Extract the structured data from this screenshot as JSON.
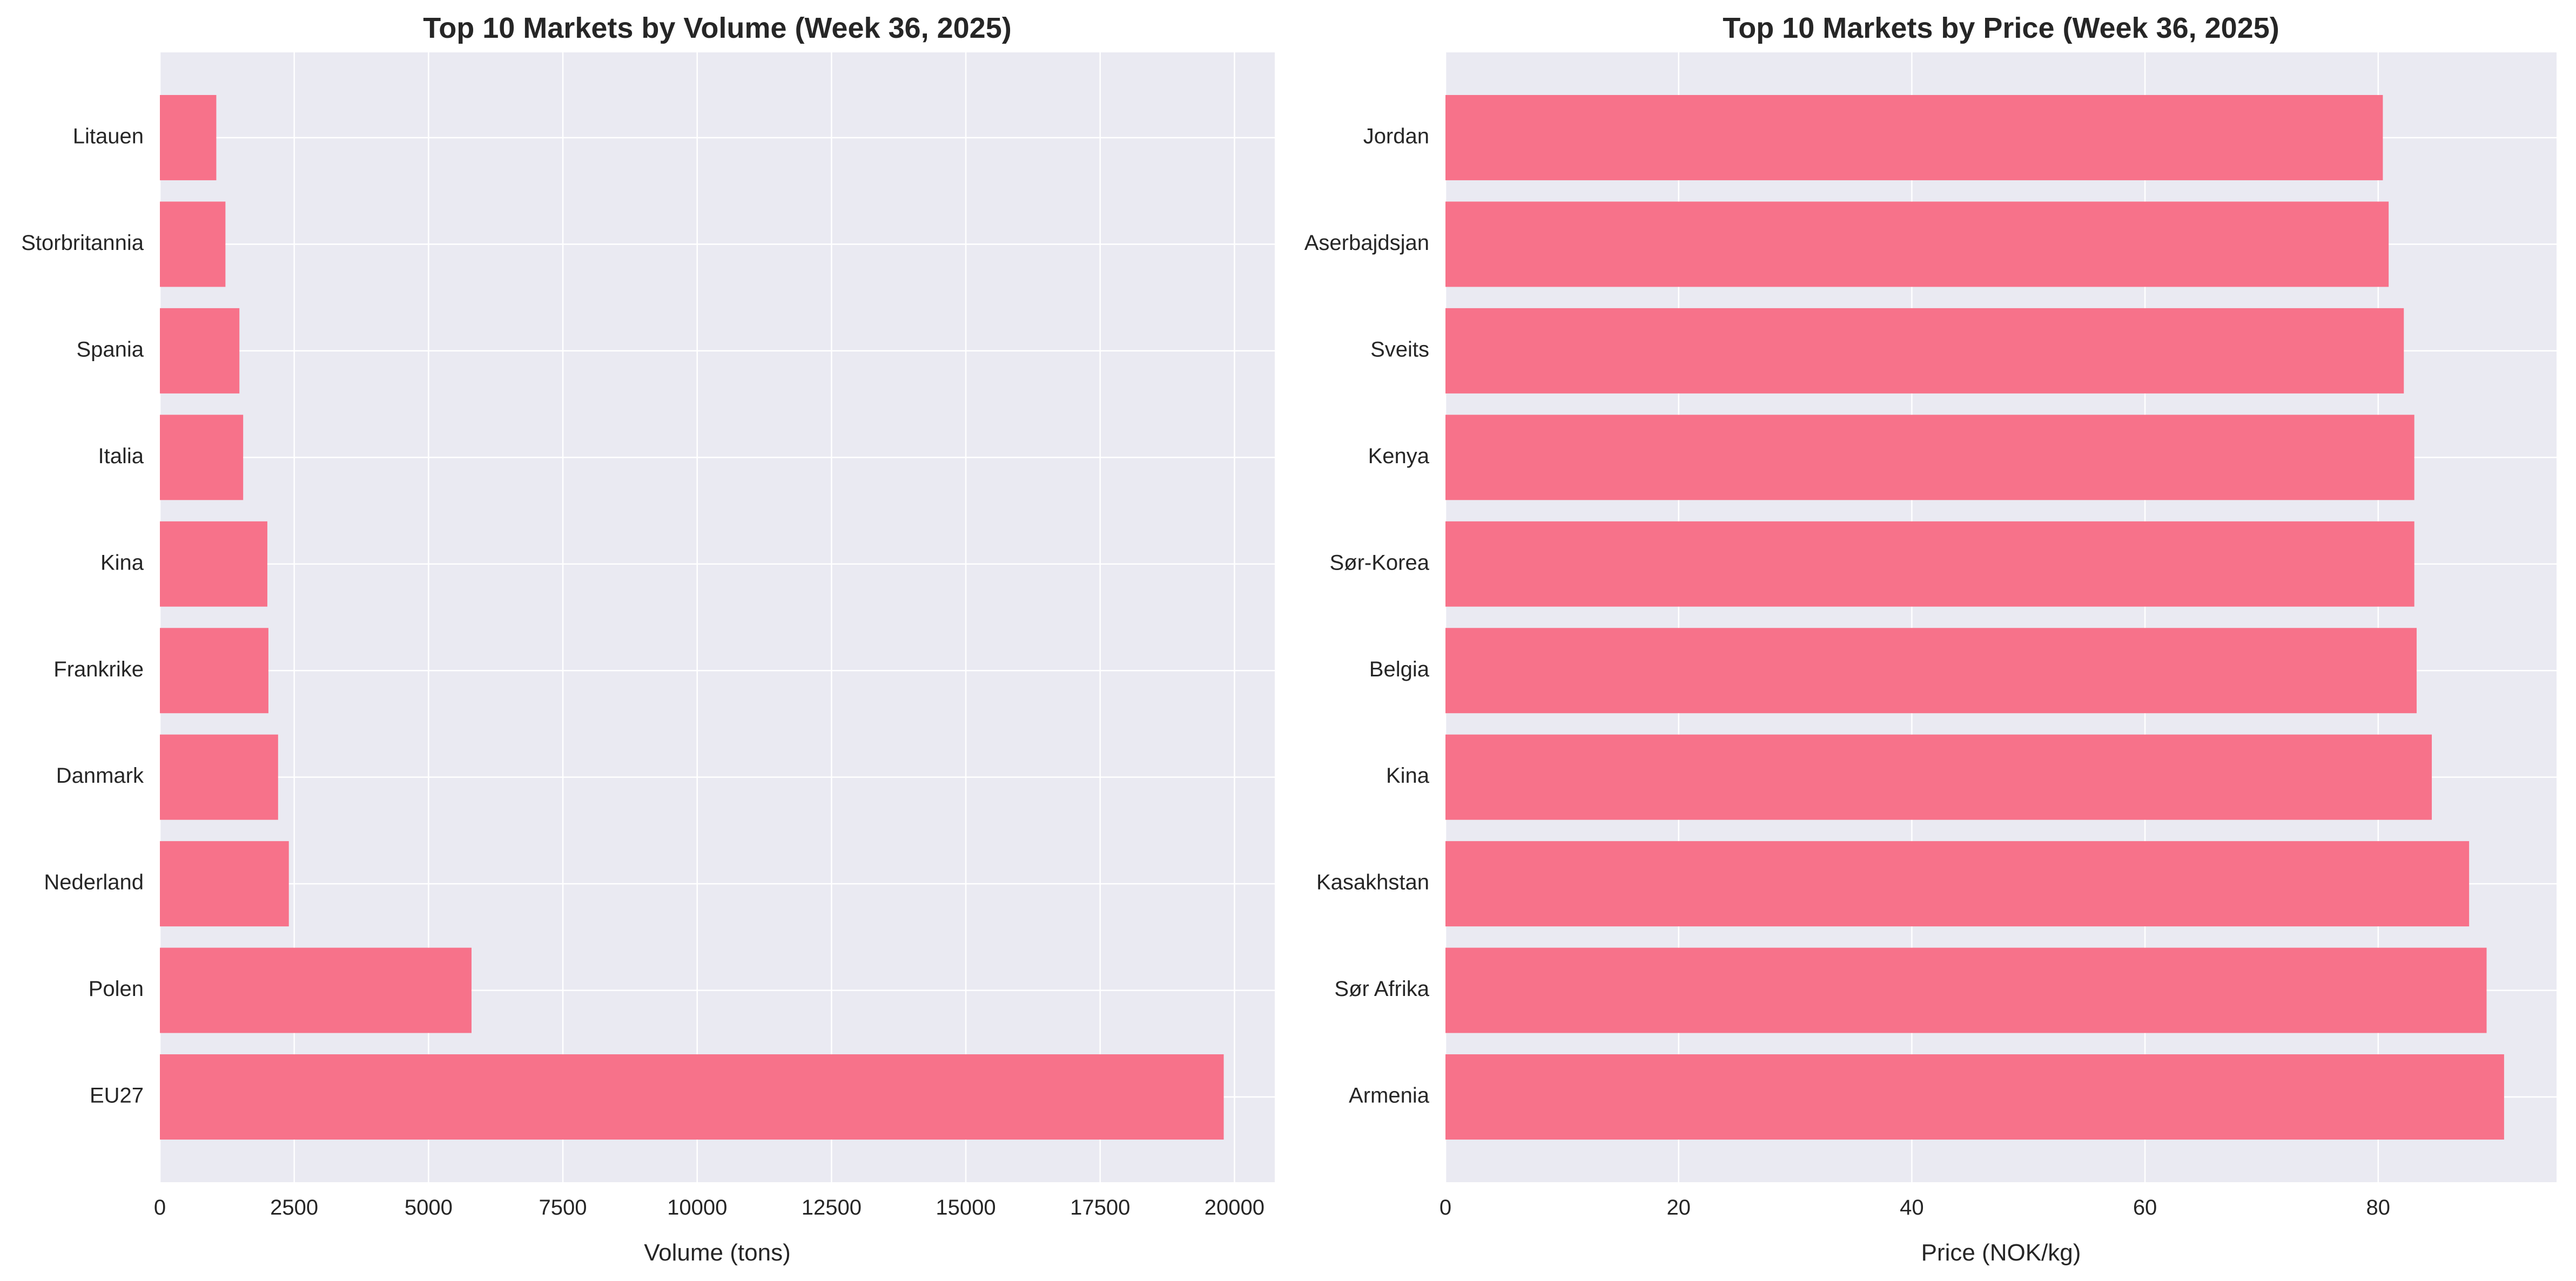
{
  "chart_data": [
    {
      "type": "bar",
      "orientation": "horizontal",
      "title": "Top 10 Markets by Volume (Week 36, 2025)",
      "xlabel": "Volume (tons)",
      "ylabel": "",
      "categories": [
        "EU27",
        "Polen",
        "Nederland",
        "Danmark",
        "Frankrike",
        "Kina",
        "Italia",
        "Spania",
        "Storbritannia",
        "Litauen"
      ],
      "values": [
        19800,
        5800,
        2400,
        2200,
        2020,
        2000,
        1550,
        1480,
        1220,
        1050
      ],
      "xlim": [
        0,
        20750
      ],
      "xticks": [
        0,
        2500,
        5000,
        7500,
        10000,
        12500,
        15000,
        17500,
        20000
      ],
      "bar_color": "#f7728a",
      "background_color": "#eaeaf2",
      "grid": true,
      "legend": "none"
    },
    {
      "type": "bar",
      "orientation": "horizontal",
      "title": "Top 10 Markets by Price (Week 36, 2025)",
      "xlabel": "Price (NOK/kg)",
      "ylabel": "",
      "categories": [
        "Armenia",
        "Sør Afrika",
        "Kasakhstan",
        "Kina",
        "Belgia",
        "Sør-Korea",
        "Kenya",
        "Sveits",
        "Aserbajdsjan",
        "Jordan"
      ],
      "values": [
        90.8,
        89.3,
        87.8,
        84.6,
        83.3,
        83.1,
        83.1,
        82.2,
        80.9,
        80.4
      ],
      "xlim": [
        0,
        95.3
      ],
      "xticks": [
        0,
        20,
        40,
        60,
        80
      ],
      "bar_color": "#f7728a",
      "background_color": "#eaeaf2",
      "grid": true,
      "legend": "none"
    }
  ]
}
